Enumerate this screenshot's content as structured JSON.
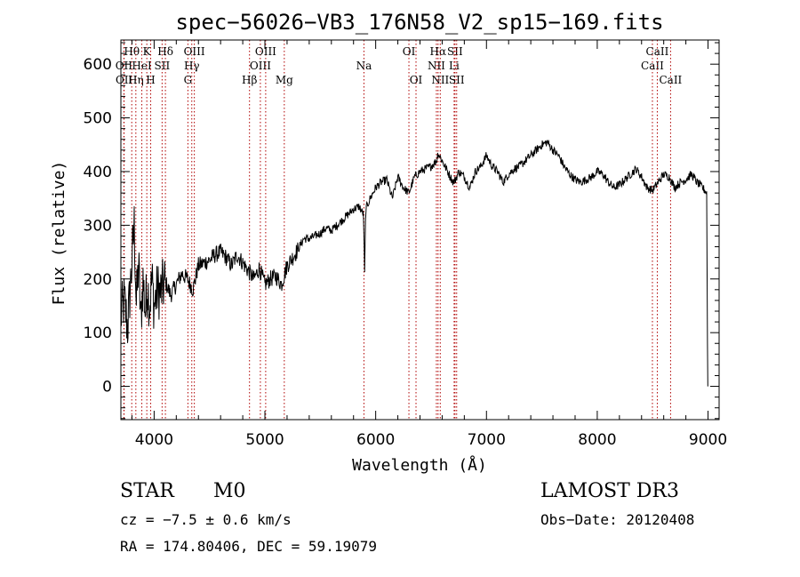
{
  "chart_data": {
    "type": "line",
    "title": "spec−56026−VB3_176N58_V2_sp15−169.fits",
    "xlabel": "Wavelength (Å)",
    "ylabel": "Flux (relative)",
    "xlim": [
      3700,
      9100
    ],
    "ylim": [
      -62,
      645
    ],
    "xticks": [
      4000,
      5000,
      6000,
      7000,
      8000,
      9000
    ],
    "yticks": [
      0,
      100,
      200,
      300,
      400,
      500,
      600
    ],
    "grid": false,
    "series": [
      {
        "name": "flux",
        "x": [
          3700,
          3730,
          3760,
          3790,
          3820,
          3840,
          3860,
          3880,
          3900,
          3920,
          3940,
          3960,
          3980,
          4000,
          4030,
          4060,
          4100,
          4150,
          4200,
          4250,
          4300,
          4350,
          4400,
          4450,
          4500,
          4550,
          4600,
          4650,
          4700,
          4750,
          4800,
          4850,
          4900,
          4950,
          5000,
          5050,
          5100,
          5150,
          5200,
          5250,
          5300,
          5350,
          5400,
          5450,
          5500,
          5550,
          5600,
          5650,
          5700,
          5750,
          5800,
          5850,
          5890,
          5900,
          5910,
          5950,
          6000,
          6050,
          6100,
          6150,
          6200,
          6250,
          6300,
          6350,
          6400,
          6450,
          6500,
          6550,
          6563,
          6600,
          6650,
          6700,
          6720,
          6750,
          6800,
          6850,
          6900,
          6950,
          7000,
          7050,
          7100,
          7150,
          7200,
          7250,
          7300,
          7350,
          7400,
          7450,
          7500,
          7550,
          7600,
          7650,
          7700,
          7750,
          7800,
          7850,
          7900,
          7950,
          8000,
          8050,
          8100,
          8150,
          8200,
          8250,
          8300,
          8350,
          8400,
          8450,
          8500,
          8550,
          8600,
          8650,
          8700,
          8750,
          8800,
          8850,
          8900,
          8950,
          8990
        ],
        "y": [
          130,
          160,
          110,
          200,
          300,
          150,
          230,
          120,
          200,
          140,
          190,
          150,
          200,
          150,
          180,
          175,
          195,
          170,
          190,
          210,
          200,
          180,
          225,
          230,
          235,
          245,
          250,
          240,
          225,
          245,
          230,
          215,
          200,
          220,
          190,
          200,
          205,
          190,
          225,
          240,
          255,
          275,
          275,
          280,
          285,
          295,
          290,
          300,
          310,
          320,
          330,
          335,
          320,
          210,
          330,
          350,
          370,
          380,
          385,
          350,
          390,
          370,
          360,
          390,
          400,
          405,
          410,
          420,
          435,
          420,
          400,
          380,
          385,
          400,
          390,
          370,
          400,
          410,
          430,
          410,
          400,
          380,
          395,
          405,
          410,
          420,
          430,
          440,
          450,
          455,
          440,
          430,
          410,
          395,
          385,
          380,
          385,
          390,
          400,
          395,
          380,
          370,
          375,
          385,
          395,
          405,
          390,
          370,
          365,
          380,
          395,
          390,
          370,
          380,
          385,
          395,
          380,
          370,
          360
        ]
      }
    ],
    "lines": [
      {
        "name": "OII",
        "wl": 3727,
        "row": 1
      },
      {
        "name": "OII",
        "wl": 3729,
        "row": 2
      },
      {
        "name": "Hθ",
        "wl": 3798,
        "row": 0
      },
      {
        "name": "Hη",
        "wl": 3835,
        "row": 2
      },
      {
        "name": "HeI",
        "wl": 3889,
        "row": 1
      },
      {
        "name": "K",
        "wl": 3934,
        "row": 0
      },
      {
        "name": "H",
        "wl": 3969,
        "row": 2
      },
      {
        "name": "SII",
        "wl": 4072,
        "row": 1
      },
      {
        "name": "Hδ",
        "wl": 4102,
        "row": 0
      },
      {
        "name": "G",
        "wl": 4305,
        "row": 2
      },
      {
        "name": "Hγ",
        "wl": 4340,
        "row": 1
      },
      {
        "name": "OIII",
        "wl": 4363,
        "row": 0
      },
      {
        "name": "Hβ",
        "wl": 4861,
        "row": 2
      },
      {
        "name": "OIII",
        "wl": 4959,
        "row": 1
      },
      {
        "name": "OIII",
        "wl": 5007,
        "row": 0
      },
      {
        "name": "Mg",
        "wl": 5175,
        "row": 2
      },
      {
        "name": "Na",
        "wl": 5894,
        "row": 1
      },
      {
        "name": "OI",
        "wl": 6300,
        "row": 0
      },
      {
        "name": "OI",
        "wl": 6364,
        "row": 2
      },
      {
        "name": "NII",
        "wl": 6548,
        "row": 1
      },
      {
        "name": "Hα",
        "wl": 6563,
        "row": 0
      },
      {
        "name": "NII",
        "wl": 6583,
        "row": 2
      },
      {
        "name": "Li",
        "wl": 6708,
        "row": 1
      },
      {
        "name": "SII",
        "wl": 6716,
        "row": 0
      },
      {
        "name": "SII",
        "wl": 6731,
        "row": 2
      },
      {
        "name": "CaII",
        "wl": 8498,
        "row": 1
      },
      {
        "name": "CaII",
        "wl": 8542,
        "row": 0
      },
      {
        "name": "CaII",
        "wl": 8662,
        "row": 2
      }
    ]
  },
  "info": {
    "object_class": "STAR",
    "subclass": "M0",
    "survey": "LAMOST DR3",
    "redshift": "cz = −7.5 ± 0.6 km/s",
    "obs_date": "Obs−Date: 20120408",
    "coords": "RA = 174.80406, DEC =  59.19079"
  }
}
